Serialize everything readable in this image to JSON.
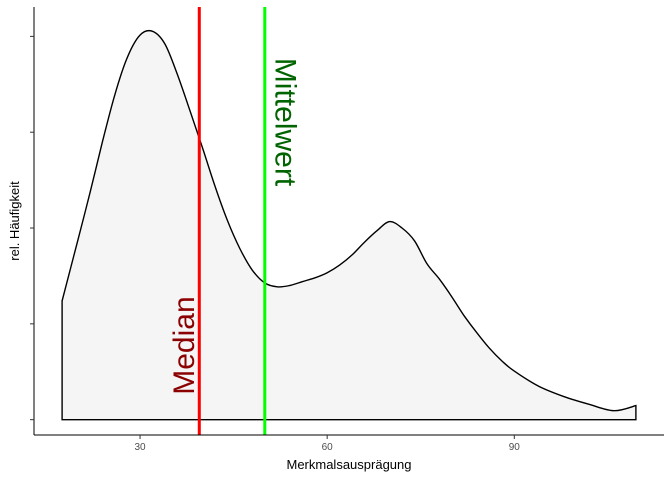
{
  "chart_data": {
    "type": "area",
    "xlabel": "Merkmalsausprägung",
    "ylabel": "rel. Häufigkeit",
    "xlim": [
      13,
      114
    ],
    "ylim": [
      -0.0012,
      0.0323
    ],
    "x_ticks": [
      30,
      60,
      90
    ],
    "y_tick_count": 5,
    "grid": false,
    "density": {
      "x": [
        17.5,
        20,
        22,
        24,
        26,
        28,
        30,
        32,
        34,
        36,
        38,
        40,
        42,
        44,
        46,
        48,
        50,
        52,
        54,
        56,
        58,
        60,
        62,
        64,
        66,
        68,
        70,
        72,
        74,
        76,
        78,
        80,
        82,
        84,
        86,
        88,
        90,
        94,
        98,
        102,
        106,
        109.5
      ],
      "y": [
        0.0093,
        0.014,
        0.0178,
        0.0218,
        0.0255,
        0.0284,
        0.0301,
        0.0304,
        0.0294,
        0.027,
        0.0242,
        0.0213,
        0.0183,
        0.0156,
        0.0134,
        0.0117,
        0.0107,
        0.0104,
        0.0105,
        0.0108,
        0.0111,
        0.0115,
        0.0121,
        0.0129,
        0.0139,
        0.0148,
        0.0155,
        0.015,
        0.014,
        0.0122,
        0.011,
        0.0096,
        0.0081,
        0.0068,
        0.0056,
        0.0046,
        0.0038,
        0.0026,
        0.0018,
        0.0012,
        0.0007,
        0.0011
      ],
      "fill": "#f5f5f5",
      "stroke": "#000000"
    },
    "annotations": [
      {
        "label": "Median",
        "x": 39.5,
        "line_color": "#ff0000",
        "text_color": "#8b0000",
        "text_y": 0.0058
      },
      {
        "label": "Mittelwert",
        "x": 50,
        "line_color": "#00ff00",
        "text_color": "#006400",
        "text_y": 0.0233
      }
    ]
  }
}
